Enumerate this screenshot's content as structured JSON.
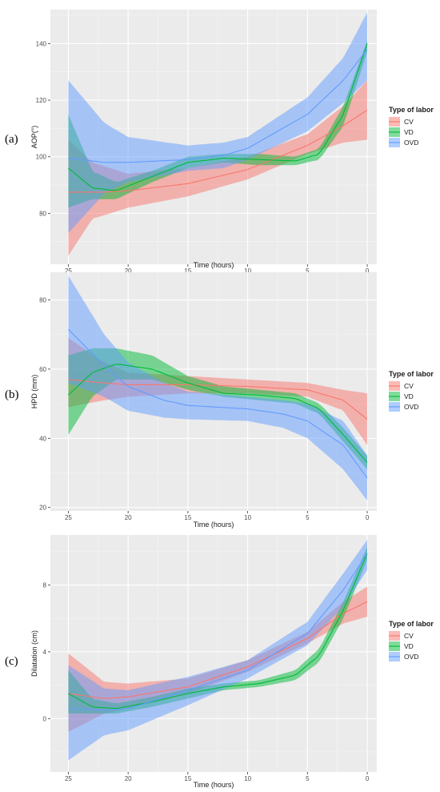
{
  "legend_title": "Type of labor",
  "colors": {
    "CV": "#F8766D",
    "VD": "#00BA38",
    "OVD": "#619CFF"
  },
  "chart_data": [
    {
      "type": "line",
      "panel_label": "(a)",
      "ylabel": "AOP(°)",
      "xlabel": "Time (hours)",
      "x_reversed": true,
      "xlim": [
        -0.8,
        26.5
      ],
      "ylim": [
        62,
        152
      ],
      "xticks": [
        25,
        20,
        15,
        10,
        5,
        0
      ],
      "yticks": [
        80,
        100,
        120,
        140
      ],
      "grid": true,
      "legend_position": "right",
      "series": [
        {
          "name": "CV",
          "points": [
            [
              25,
              87.5
            ],
            [
              22,
              87.5
            ],
            [
              20,
              88
            ],
            [
              15,
              90.5
            ],
            [
              10,
              95.5
            ],
            [
              5,
              104
            ],
            [
              2,
              111
            ],
            [
              0,
              116.5
            ]
          ],
          "lower": [
            [
              25,
              65
            ],
            [
              23,
              78
            ],
            [
              20,
              82
            ],
            [
              15,
              86
            ],
            [
              10,
              92
            ],
            [
              5,
              101
            ],
            [
              2,
              105
            ],
            [
              0,
              106
            ]
          ],
          "upper": [
            [
              25,
              106
            ],
            [
              23,
              98
            ],
            [
              20,
              94
            ],
            [
              15,
              96
            ],
            [
              10,
              100
            ],
            [
              5,
              108
            ],
            [
              2,
              118
            ],
            [
              0,
              127
            ]
          ]
        },
        {
          "name": "VD",
          "points": [
            [
              25,
              96
            ],
            [
              23,
              89
            ],
            [
              21,
              88
            ],
            [
              18,
              93
            ],
            [
              15,
              98
            ],
            [
              12,
              99.5
            ],
            [
              9,
              99
            ],
            [
              6,
              98.5
            ],
            [
              4,
              101
            ],
            [
              2,
              115
            ],
            [
              0,
              140
            ]
          ],
          "lower": [
            [
              25,
              82
            ],
            [
              23,
              85
            ],
            [
              21,
              85
            ],
            [
              18,
              91
            ],
            [
              15,
              96
            ],
            [
              12,
              98
            ],
            [
              9,
              97
            ],
            [
              6,
              97
            ],
            [
              4,
              99
            ],
            [
              2,
              111
            ],
            [
              0,
              137
            ]
          ],
          "upper": [
            [
              25,
              115
            ],
            [
              23,
              95
            ],
            [
              21,
              91
            ],
            [
              18,
              95
            ],
            [
              15,
              100
            ],
            [
              12,
              101
            ],
            [
              9,
              101
            ],
            [
              6,
              100
            ],
            [
              4,
              103
            ],
            [
              2,
              118
            ],
            [
              0,
              141
            ]
          ]
        },
        {
          "name": "OVD",
          "points": [
            [
              25,
              99.5
            ],
            [
              22,
              98
            ],
            [
              20,
              98
            ],
            [
              15,
              99
            ],
            [
              12,
              100.5
            ],
            [
              10,
              103
            ],
            [
              5,
              115
            ],
            [
              2,
              127
            ],
            [
              0,
              138
            ]
          ],
          "lower": [
            [
              25,
              73
            ],
            [
              22,
              87
            ],
            [
              20,
              91
            ],
            [
              15,
              95
            ],
            [
              12,
              96
            ],
            [
              10,
              99
            ],
            [
              5,
              109
            ],
            [
              2,
              119
            ],
            [
              0,
              127
            ]
          ],
          "upper": [
            [
              25,
              127
            ],
            [
              22,
              112
            ],
            [
              20,
              107
            ],
            [
              15,
              104
            ],
            [
              12,
              105
            ],
            [
              10,
              107
            ],
            [
              5,
              121
            ],
            [
              2,
              135
            ],
            [
              0,
              151
            ]
          ]
        }
      ]
    },
    {
      "type": "line",
      "panel_label": "(b)",
      "ylabel": "HPD (mm)",
      "xlabel": "Time (hours)",
      "x_reversed": true,
      "xlim": [
        -0.8,
        26.5
      ],
      "ylim": [
        19,
        88
      ],
      "xticks": [
        25,
        20,
        15,
        10,
        5,
        0
      ],
      "yticks": [
        20,
        40,
        60,
        80
      ],
      "grid": true,
      "legend_position": "right",
      "series": [
        {
          "name": "CV",
          "points": [
            [
              25,
              57
            ],
            [
              22,
              56
            ],
            [
              20,
              55.5
            ],
            [
              15,
              55.5
            ],
            [
              10,
              55
            ],
            [
              5,
              54
            ],
            [
              2,
              51
            ],
            [
              0,
              45.5
            ]
          ],
          "lower": [
            [
              25,
              49
            ],
            [
              22,
              51
            ],
            [
              20,
              52
            ],
            [
              15,
              53
            ],
            [
              10,
              53
            ],
            [
              5,
              52
            ],
            [
              2,
              48
            ],
            [
              0,
              38
            ]
          ],
          "upper": [
            [
              25,
              69
            ],
            [
              22,
              62
            ],
            [
              20,
              59
            ],
            [
              15,
              58
            ],
            [
              10,
              57
            ],
            [
              5,
              56
            ],
            [
              2,
              54
            ],
            [
              0,
              53
            ]
          ]
        },
        {
          "name": "VD",
          "points": [
            [
              25,
              52.5
            ],
            [
              23,
              59
            ],
            [
              21,
              61.5
            ],
            [
              18,
              60
            ],
            [
              15,
              56
            ],
            [
              12,
              53
            ],
            [
              9,
              52.5
            ],
            [
              6,
              51.5
            ],
            [
              4,
              48.5
            ],
            [
              2,
              41
            ],
            [
              0,
              33
            ]
          ],
          "lower": [
            [
              25,
              41
            ],
            [
              23,
              52
            ],
            [
              21,
              57
            ],
            [
              18,
              57
            ],
            [
              15,
              54
            ],
            [
              12,
              52
            ],
            [
              9,
              51
            ],
            [
              6,
              50
            ],
            [
              4,
              47
            ],
            [
              2,
              39
            ],
            [
              0,
              31
            ]
          ],
          "upper": [
            [
              25,
              64
            ],
            [
              23,
              66
            ],
            [
              21,
              66
            ],
            [
              18,
              64
            ],
            [
              15,
              58
            ],
            [
              12,
              55
            ],
            [
              9,
              54
            ],
            [
              6,
              53
            ],
            [
              4,
              50
            ],
            [
              2,
              43
            ],
            [
              0,
              35
            ]
          ]
        },
        {
          "name": "OVD",
          "points": [
            [
              25,
              71.5
            ],
            [
              22,
              61
            ],
            [
              20,
              55
            ],
            [
              17,
              51
            ],
            [
              15,
              49.5
            ],
            [
              10,
              48.5
            ],
            [
              7,
              47
            ],
            [
              5,
              45
            ],
            [
              2,
              38
            ],
            [
              0,
              28.5
            ]
          ],
          "lower": [
            [
              25,
              56
            ],
            [
              22,
              52
            ],
            [
              20,
              48
            ],
            [
              17,
              46
            ],
            [
              15,
              45.5
            ],
            [
              10,
              45
            ],
            [
              7,
              43
            ],
            [
              5,
              40
            ],
            [
              2,
              31
            ],
            [
              0,
              22
            ]
          ],
          "upper": [
            [
              25,
              87
            ],
            [
              22,
              70
            ],
            [
              20,
              62
            ],
            [
              17,
              56
            ],
            [
              15,
              53.5
            ],
            [
              10,
              52
            ],
            [
              7,
              51
            ],
            [
              5,
              50
            ],
            [
              2,
              45
            ],
            [
              0,
              35
            ]
          ]
        }
      ]
    },
    {
      "type": "line",
      "panel_label": "(c)",
      "ylabel": "Dilatation (cm)",
      "xlabel": "Time (hours)",
      "x_reversed": true,
      "xlim": [
        -0.8,
        26.5
      ],
      "ylim": [
        -3.2,
        11
      ],
      "xticks": [
        25,
        20,
        15,
        10,
        5,
        0
      ],
      "yticks": [
        0,
        4,
        8
      ],
      "grid": true,
      "legend_position": "right",
      "series": [
        {
          "name": "CV",
          "points": [
            [
              25,
              1.5
            ],
            [
              22,
              1.2
            ],
            [
              20,
              1.3
            ],
            [
              15,
              1.9
            ],
            [
              10,
              3.1
            ],
            [
              5,
              4.8
            ],
            [
              2,
              6.3
            ],
            [
              0,
              7
            ]
          ],
          "lower": [
            [
              25,
              -0.8
            ],
            [
              22,
              0.3
            ],
            [
              20,
              0.6
            ],
            [
              15,
              1.5
            ],
            [
              10,
              2.8
            ],
            [
              5,
              4.5
            ],
            [
              2,
              5.7
            ],
            [
              0,
              6.1
            ]
          ],
          "upper": [
            [
              25,
              3.9
            ],
            [
              22,
              2.2
            ],
            [
              20,
              2.1
            ],
            [
              15,
              2.4
            ],
            [
              10,
              3.5
            ],
            [
              5,
              5.2
            ],
            [
              2,
              7
            ],
            [
              0,
              7.9
            ]
          ]
        },
        {
          "name": "VD",
          "points": [
            [
              25,
              1.5
            ],
            [
              23,
              0.7
            ],
            [
              21,
              0.6
            ],
            [
              18,
              1
            ],
            [
              15,
              1.5
            ],
            [
              12,
              1.9
            ],
            [
              9,
              2.1
            ],
            [
              6,
              2.6
            ],
            [
              4,
              3.8
            ],
            [
              2,
              6.5
            ],
            [
              0,
              9.9
            ]
          ],
          "lower": [
            [
              25,
              0.3
            ],
            [
              23,
              0.3
            ],
            [
              21,
              0.3
            ],
            [
              18,
              0.7
            ],
            [
              15,
              1.2
            ],
            [
              12,
              1.7
            ],
            [
              9,
              1.9
            ],
            [
              6,
              2.3
            ],
            [
              4,
              3.4
            ],
            [
              2,
              6
            ],
            [
              0,
              9.5
            ]
          ],
          "upper": [
            [
              25,
              2.9
            ],
            [
              23,
              1.2
            ],
            [
              21,
              0.9
            ],
            [
              18,
              1.3
            ],
            [
              15,
              1.8
            ],
            [
              12,
              2.1
            ],
            [
              9,
              2.3
            ],
            [
              6,
              2.9
            ],
            [
              4,
              4.2
            ],
            [
              2,
              7
            ],
            [
              0,
              10.3
            ]
          ]
        },
        {
          "name": "OVD",
          "points": [
            [
              25,
              0.6
            ],
            [
              22,
              0.5
            ],
            [
              20,
              0.6
            ],
            [
              15,
              1.7
            ],
            [
              10,
              2.9
            ],
            [
              5,
              5.1
            ],
            [
              2,
              7.7
            ],
            [
              0,
              9.9
            ]
          ],
          "lower": [
            [
              25,
              -2.5
            ],
            [
              22,
              -1
            ],
            [
              20,
              -0.7
            ],
            [
              15,
              0.8
            ],
            [
              10,
              2.4
            ],
            [
              5,
              4.4
            ],
            [
              2,
              6.7
            ],
            [
              0,
              8.9
            ]
          ],
          "upper": [
            [
              25,
              3.2
            ],
            [
              22,
              1.8
            ],
            [
              20,
              1.7
            ],
            [
              15,
              2.5
            ],
            [
              10,
              3.5
            ],
            [
              5,
              5.8
            ],
            [
              2,
              8.7
            ],
            [
              0,
              10.7
            ]
          ]
        }
      ]
    }
  ]
}
